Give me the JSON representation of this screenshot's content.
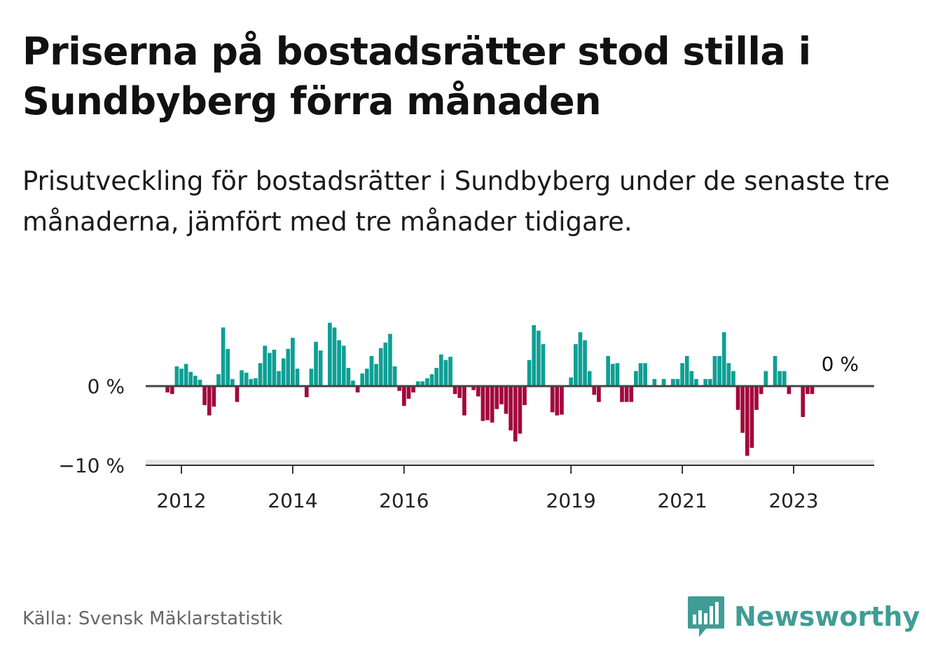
{
  "header": {
    "title": "Priserna på bostadsrätter stod stilla i Sundbyberg förra månaden",
    "subtitle": "Prisutveckling för bostadsrätter i Sundbyberg under de senaste tre månaderna, jämfört med tre månader tidigare."
  },
  "footer": {
    "source": "Källa: Svensk Mäklarstatistik",
    "brand": "Newsworthy"
  },
  "colors": {
    "positive": "#0e9f94",
    "negative": "#a3063c",
    "zero_line": "#444444",
    "axis": "#333333",
    "brand": "#3f9d96"
  },
  "chart_data": {
    "type": "bar",
    "title": "Prisutveckling för bostadsrätter i Sundbyberg",
    "xlabel": "",
    "ylabel": "",
    "unit": "%",
    "ylim": [
      -10,
      8.5
    ],
    "y_ticks": [
      0,
      -10
    ],
    "y_tick_labels": [
      "0 %",
      "−10 %"
    ],
    "x_ticks": [
      2012,
      2014,
      2016,
      2019,
      2021,
      2023
    ],
    "start": "2011-10",
    "frequency": "monthly",
    "last_value_label": "0 %",
    "values": [
      -0.8,
      -1.0,
      2.5,
      2.2,
      2.8,
      1.8,
      1.3,
      0.8,
      -2.4,
      -3.7,
      -2.6,
      1.5,
      7.4,
      4.7,
      0.9,
      -2.0,
      2.0,
      1.7,
      0.9,
      1.0,
      2.9,
      5.1,
      4.2,
      4.6,
      1.9,
      3.5,
      4.7,
      6.1,
      2.2,
      0,
      -1.4,
      2.2,
      5.6,
      4.5,
      0,
      8.0,
      7.4,
      5.8,
      5.1,
      2.3,
      0.7,
      -0.8,
      1.6,
      2.2,
      3.8,
      2.8,
      4.8,
      5.5,
      6.6,
      2.5,
      -0.6,
      -2.5,
      -1.6,
      -0.8,
      0.6,
      0.6,
      1.0,
      1.5,
      2.3,
      4.0,
      3.3,
      3.7,
      -1.0,
      -1.5,
      -3.7,
      0,
      -0.5,
      -1.3,
      -4.4,
      -4.3,
      -4.6,
      -2.9,
      -2.3,
      -3.5,
      -5.6,
      -7.0,
      -6.0,
      -2.4,
      3.3,
      7.7,
      7.0,
      5.3,
      0,
      -3.3,
      -3.7,
      -3.6,
      0,
      1.1,
      5.3,
      6.8,
      5.8,
      1.9,
      -1.1,
      -2.0,
      0,
      3.8,
      2.8,
      2.9,
      -2.0,
      -2.0,
      -2.0,
      1.9,
      2.9,
      2.9,
      0,
      0.9,
      0,
      0.9,
      0,
      0.9,
      0.9,
      2.9,
      3.8,
      1.9,
      0.9,
      0,
      0.9,
      0.9,
      3.8,
      3.8,
      6.8,
      2.9,
      1.9,
      -3.0,
      -5.9,
      -8.8,
      -7.8,
      -3.0,
      -1.0,
      1.9,
      0,
      3.8,
      1.9,
      1.9,
      -1.0,
      0,
      0,
      -3.9,
      -1.0,
      -1.0,
      0
    ]
  }
}
